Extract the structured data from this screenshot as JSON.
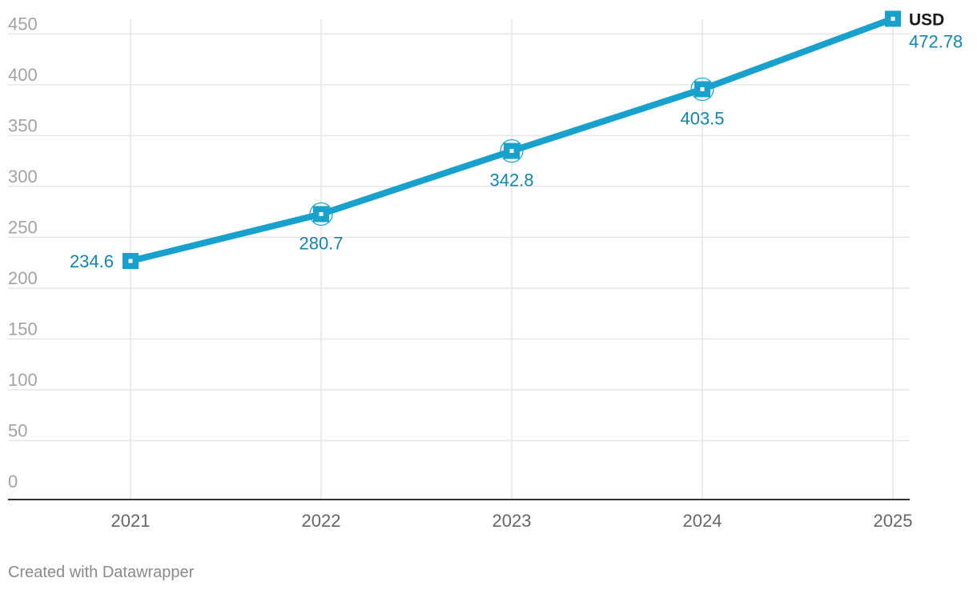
{
  "chart_data": {
    "type": "line",
    "x": [
      "2021",
      "2022",
      "2023",
      "2024",
      "2025"
    ],
    "series": [
      {
        "name": "USD",
        "values": [
          234.6,
          280.7,
          342.8,
          403.5,
          472.78
        ],
        "labels": [
          "234.6",
          "280.7",
          "342.8",
          "403.5",
          "472.78"
        ]
      }
    ],
    "yticks": [
      0,
      50,
      100,
      150,
      200,
      250,
      300,
      350,
      400,
      450
    ],
    "ylim": [
      0,
      470
    ],
    "grid": true,
    "legend": "end-of-line"
  },
  "colors": {
    "line": "#18a1cd",
    "label": "#1386ad",
    "grid": "#e6e6e6",
    "tick_text": "#a3a3a3",
    "x_tick_text": "#666666",
    "axis": "#333333",
    "series_label": "#1a1a1a"
  },
  "footer": {
    "credit": "Created with Datawrapper"
  }
}
